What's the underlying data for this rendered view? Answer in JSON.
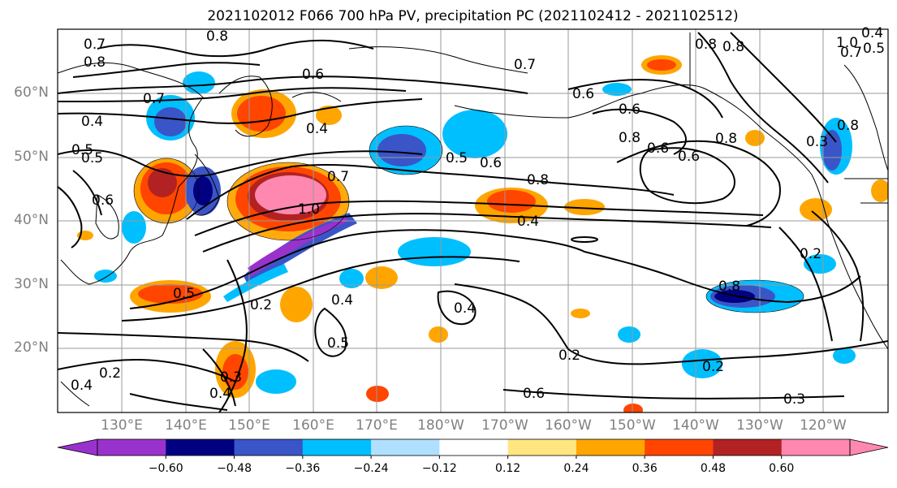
{
  "title": "2021102012 F066 700 hPa PV, precipitation PC (2021102412 - 2021102512)",
  "map": {
    "lat_labels": [
      "60°N",
      "50°N",
      "40°N",
      "30°N",
      "20°N"
    ],
    "lon_labels": [
      "130°E",
      "140°E",
      "150°E",
      "160°E",
      "170°E",
      "180°W",
      "170°W",
      "160°W",
      "150°W",
      "140°W",
      "130°W",
      "120°W"
    ],
    "contour_labels": [
      "0.7",
      "0.8",
      "0.8",
      "0.6",
      "0.7",
      "0.4",
      "0.4",
      "0.5",
      "0.7",
      "0.6",
      "0.5",
      "0.6",
      "0.8",
      "0.8",
      "0.6",
      "0.8",
      "0.8",
      "0.5",
      "0.4",
      "0.7",
      "0.8",
      "1.0",
      "0.4",
      "0.2",
      "0.5",
      "0.4",
      "0.5",
      "0.2",
      "0.4",
      "0.2",
      "0.6",
      "0.8",
      "0.2",
      "0.2",
      "0.3",
      "0.4",
      "0.6",
      "0.7",
      "1.0",
      "0.8",
      "0.6",
      "0.6",
      "0.3",
      "0.5",
      "0.4",
      "0.3"
    ]
  },
  "colorbar": {
    "ticks": [
      "−0.60",
      "−0.48",
      "−0.36",
      "−0.24",
      "−0.12",
      "0.12",
      "0.24",
      "0.36",
      "0.48",
      "0.60"
    ],
    "colors": [
      "#9932cc",
      "#000080",
      "#3a55c8",
      "#00bfff",
      "#b0e0ff",
      "#ffffff",
      "#ffe680",
      "#ffa500",
      "#ff4500",
      "#b22222",
      "#ff88b0"
    ]
  }
}
